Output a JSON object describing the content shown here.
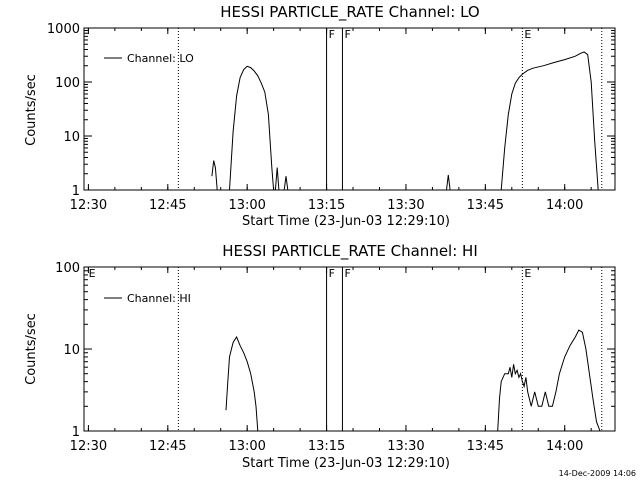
{
  "footer": {
    "timestamp": "14-Dec-2009 14:06"
  },
  "chart_data": [
    {
      "type": "line",
      "title": "HESSI PARTICLE_RATE Channel: LO",
      "xlabel": "Start Time (23-Jun-03 12:29:10)",
      "ylabel": "Counts/sec",
      "yscale": "log",
      "ylim": [
        1,
        1000
      ],
      "xlim": [
        "12:29:10",
        "14:09:30"
      ],
      "x_ticks": [
        "12:30",
        "12:45",
        "13:00",
        "13:15",
        "13:30",
        "13:45",
        "14:00"
      ],
      "y_ticks": [
        "1",
        "10",
        "100",
        "1000"
      ],
      "legend": {
        "position": "top-left",
        "entries": [
          "Channel: LO"
        ]
      },
      "markers": [
        {
          "label": "F",
          "x": "13:15:00"
        },
        {
          "label": "F",
          "x": "13:18:00"
        },
        {
          "label": "E",
          "x": "13:52:00"
        }
      ],
      "dotted_lines": [
        "12:47:00",
        "13:52:00",
        "14:07:00"
      ],
      "series": [
        {
          "name": "Channel: LO",
          "segments": [
            {
              "x": [
                "12:53:20",
                "12:53:40",
                "12:54:00",
                "12:54:20"
              ],
              "y": [
                1.8,
                3.5,
                2.6,
                1.0
              ]
            },
            {
              "x": [
                "12:56:40",
                "12:57:20",
                "12:58:00",
                "12:58:40",
                "12:59:20",
                "13:00:00",
                "13:00:40",
                "13:01:20",
                "13:02:00",
                "13:02:40",
                "13:03:20",
                "13:04:00",
                "13:04:20",
                "13:04:40",
                "13:05:00"
              ],
              "y": [
                1.0,
                12,
                55,
                120,
                170,
                195,
                185,
                160,
                130,
                95,
                65,
                25,
                8,
                2.5,
                1.0
              ]
            },
            {
              "x": [
                "13:05:20",
                "13:05:40",
                "13:06:00"
              ],
              "y": [
                1.0,
                2.6,
                1.0
              ]
            },
            {
              "x": [
                "13:07:00",
                "13:07:20",
                "13:07:40"
              ],
              "y": [
                1.0,
                1.8,
                1.0
              ]
            },
            {
              "x": [
                "13:37:40",
                "13:38:00",
                "13:38:20"
              ],
              "y": [
                1.0,
                1.9,
                1.0
              ]
            },
            {
              "x": [
                "13:48:00",
                "13:48:40",
                "13:49:20",
                "13:50:00",
                "13:50:40",
                "13:51:20",
                "13:52:00",
                "13:53:00",
                "13:54:00",
                "13:56:00",
                "13:58:00",
                "14:00:00",
                "14:02:00",
                "14:03:00",
                "14:03:40",
                "14:04:20",
                "14:05:00",
                "14:05:40",
                "14:06:20"
              ],
              "y": [
                1.0,
                6,
                25,
                60,
                95,
                120,
                140,
                165,
                180,
                200,
                230,
                260,
                300,
                340,
                360,
                320,
                100,
                8,
                1.0
              ]
            }
          ]
        }
      ]
    },
    {
      "type": "line",
      "title": "HESSI PARTICLE_RATE Channel: HI",
      "xlabel": "Start Time (23-Jun-03 12:29:10)",
      "ylabel": "Counts/sec",
      "yscale": "log",
      "ylim": [
        1,
        100
      ],
      "xlim": [
        "12:29:10",
        "14:09:30"
      ],
      "x_ticks": [
        "12:30",
        "12:45",
        "13:00",
        "13:15",
        "13:30",
        "13:45",
        "14:00"
      ],
      "y_ticks": [
        "1",
        "10",
        "100"
      ],
      "legend": {
        "position": "top-left",
        "entries": [
          "Channel: HI"
        ]
      },
      "markers": [
        {
          "label": "E",
          "x": "12:29:40"
        },
        {
          "label": "F",
          "x": "13:15:00"
        },
        {
          "label": "F",
          "x": "13:18:00"
        },
        {
          "label": "E",
          "x": "13:52:00"
        }
      ],
      "dotted_lines": [
        "12:47:00",
        "13:52:00",
        "14:07:00"
      ],
      "series": [
        {
          "name": "Channel: HI",
          "segments": [
            {
              "x": [
                "12:56:00",
                "12:56:20",
                "12:56:40",
                "12:57:20",
                "12:58:00",
                "12:58:40",
                "12:59:20",
                "13:00:00",
                "13:00:40",
                "13:01:20",
                "13:01:40",
                "13:02:00"
              ],
              "y": [
                1.8,
                4,
                8,
                12,
                14,
                11,
                9,
                7,
                5,
                3,
                2,
                1.0
              ]
            },
            {
              "x": [
                "13:47:20",
                "13:47:40",
                "13:48:00",
                "13:48:40",
                "13:49:20",
                "13:49:40",
                "13:50:00",
                "13:50:20",
                "13:50:40",
                "13:51:00",
                "13:51:20",
                "13:51:40",
                "13:52:00",
                "13:52:20",
                "13:52:40",
                "13:53:00",
                "13:53:40",
                "13:54:20",
                "13:55:00",
                "13:55:40",
                "13:56:20",
                "13:57:00",
                "13:57:40",
                "13:58:20",
                "13:59:00",
                "14:00:00",
                "14:01:00",
                "14:02:00",
                "14:02:40",
                "14:03:20",
                "14:04:00",
                "14:04:40",
                "14:05:20",
                "14:06:00",
                "14:06:40"
              ],
              "y": [
                1.0,
                2.5,
                4,
                5,
                5,
                6,
                4.5,
                6.5,
                5,
                5.5,
                4.5,
                5,
                4,
                3.5,
                4.5,
                3,
                2,
                3,
                2,
                2,
                3,
                2,
                2,
                3,
                5,
                8,
                11,
                14,
                17,
                16,
                10,
                5,
                2.5,
                1.3,
                1.0
              ]
            }
          ]
        }
      ]
    }
  ]
}
